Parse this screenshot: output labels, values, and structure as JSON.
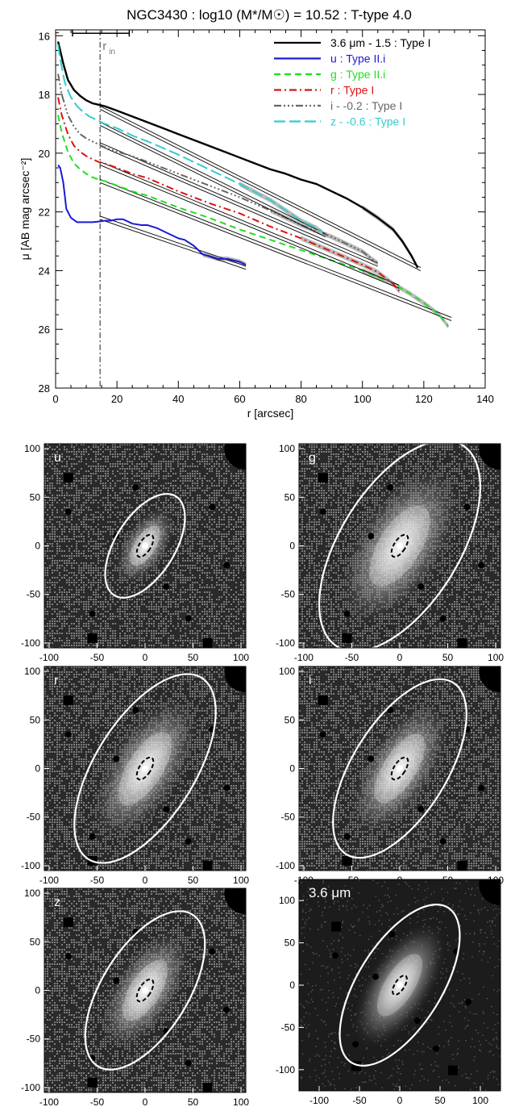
{
  "chart_data": [
    {
      "type": "line",
      "title": "NGC3430 : log10 (M*/M☉) = 10.52 : T-type 4.0",
      "xlabel": "r [arcsec]",
      "ylabel": "μ [AB mag arcsec⁻²]",
      "xlim": [
        0,
        140
      ],
      "ylim": [
        28,
        15.8
      ],
      "y_inverted": true,
      "xticks": [
        "0",
        "20",
        "40",
        "60",
        "80",
        "100",
        "120",
        "140"
      ],
      "yticks": [
        "16",
        "18",
        "20",
        "22",
        "24",
        "26",
        "28"
      ],
      "legend_position": "top-right",
      "annotations": {
        "r_in_label": "r",
        "r_in_sub": "in",
        "r_in_value": 14.5,
        "r_in_errorbar": [
          5.5,
          24.0
        ],
        "r_in_errorbar_y": 16.0
      },
      "series": [
        {
          "name": "3.6 μm - 1.5 : Type I",
          "color": "#000000",
          "dash": "solid",
          "x": [
            0.8,
            1.5,
            2.5,
            4,
            6,
            8,
            10,
            12,
            14,
            16,
            20,
            25,
            30,
            35,
            40,
            45,
            50,
            55,
            60,
            65,
            70,
            75,
            80,
            85,
            90,
            95,
            100,
            105,
            110,
            113,
            116,
            118
          ],
          "y": [
            16.2,
            16.5,
            16.95,
            17.5,
            17.85,
            18.05,
            18.2,
            18.3,
            18.35,
            18.4,
            18.55,
            18.75,
            18.95,
            19.15,
            19.35,
            19.55,
            19.75,
            19.95,
            20.15,
            20.35,
            20.55,
            20.7,
            20.9,
            21.05,
            21.3,
            21.55,
            21.85,
            22.2,
            22.6,
            23.0,
            23.5,
            23.9
          ],
          "fit_start": 14.5,
          "fit_end": 119,
          "fit_y0": 18.45,
          "fit_y1": 23.95
        },
        {
          "name": "u : Type II.i",
          "color": "#1a1ad6",
          "dash": "solid",
          "x": [
            0.8,
            1.5,
            2.5,
            3.5,
            5,
            7,
            9,
            12,
            14,
            16,
            18,
            20,
            22,
            25,
            28,
            30,
            33,
            36,
            40,
            42,
            45,
            48,
            50,
            53,
            56,
            60,
            62
          ],
          "y": [
            20.4,
            20.5,
            21.0,
            21.9,
            22.2,
            22.35,
            22.35,
            22.35,
            22.33,
            22.3,
            22.3,
            22.25,
            22.25,
            22.4,
            22.45,
            22.45,
            22.55,
            22.7,
            22.9,
            22.95,
            23.15,
            23.45,
            23.5,
            23.6,
            23.6,
            23.7,
            23.8
          ],
          "fit_start": 14.5,
          "fit_end": 62,
          "fit_y0": 22.2,
          "fit_y1": 23.9
        },
        {
          "name": "g : Type II.i",
          "color": "#22dd22",
          "dash": "8,5",
          "x": [
            0.8,
            2,
            4,
            6,
            8,
            10,
            12,
            14,
            16,
            20,
            25,
            30,
            40,
            50,
            60,
            70,
            80,
            90,
            100,
            110,
            115,
            120,
            125,
            128
          ],
          "y": [
            18.7,
            19.3,
            19.95,
            20.35,
            20.55,
            20.7,
            20.82,
            20.9,
            20.95,
            21.1,
            21.3,
            21.45,
            21.85,
            22.2,
            22.6,
            22.95,
            23.3,
            23.65,
            24.0,
            24.45,
            24.75,
            25.1,
            25.5,
            25.9
          ],
          "fit_start": 14.5,
          "fit_end": 129,
          "fit_y0": 20.95,
          "fit_y1": 25.65
        },
        {
          "name": "r : Type I",
          "color": "#dd1111",
          "dash": "9,4,2,4",
          "x": [
            0.8,
            2,
            4,
            6,
            8,
            10,
            12,
            14,
            16,
            20,
            25,
            30,
            40,
            50,
            60,
            70,
            80,
            90,
            100,
            105,
            110,
            112
          ],
          "y": [
            18.1,
            18.7,
            19.35,
            19.75,
            19.95,
            20.1,
            20.2,
            20.3,
            20.35,
            20.5,
            20.7,
            20.85,
            21.3,
            21.7,
            22.05,
            22.5,
            22.9,
            23.35,
            23.8,
            24.05,
            24.45,
            24.7
          ],
          "fit_start": 14.5,
          "fit_end": 112,
          "fit_y0": 20.35,
          "fit_y1": 24.55
        },
        {
          "name": "i - -0.2 : Type I",
          "color": "#666666",
          "dash": "9,3,2,3,2,3,2,3",
          "x": [
            0.8,
            2,
            4,
            6,
            8,
            10,
            12,
            14,
            16,
            20,
            25,
            30,
            40,
            50,
            60,
            70,
            80,
            90,
            100,
            103,
            105
          ],
          "y": [
            17.3,
            18.0,
            18.7,
            19.1,
            19.35,
            19.5,
            19.6,
            19.7,
            19.8,
            19.95,
            20.1,
            20.3,
            20.7,
            21.1,
            21.5,
            21.95,
            22.45,
            22.85,
            23.35,
            23.6,
            23.75
          ],
          "fit_start": 14.5,
          "fit_end": 105,
          "fit_y0": 19.7,
          "fit_y1": 23.8
        },
        {
          "name": "z - -0.6 : Type I",
          "color": "#33cccc",
          "dash": "14,5",
          "x": [
            0.8,
            1.5,
            3,
            5,
            7,
            9,
            11,
            13,
            14,
            16,
            20,
            25,
            30,
            40,
            50,
            60,
            70,
            75,
            80,
            85,
            87
          ],
          "y": [
            16.3,
            16.8,
            17.6,
            18.1,
            18.4,
            18.6,
            18.75,
            18.85,
            18.9,
            19.0,
            19.15,
            19.4,
            19.6,
            20.05,
            20.55,
            21.05,
            21.6,
            21.95,
            22.3,
            22.55,
            22.7
          ],
          "fit_start": 14.5,
          "fit_end": 88,
          "fit_y0": 19.0,
          "fit_y1": 22.8
        }
      ]
    },
    {
      "type": "image",
      "panels": [
        {
          "label": "u",
          "band": "u",
          "outer_axes": [
            31,
            60
          ],
          "angle_deg": 32,
          "inner_axes": [
            6,
            13
          ],
          "xticks": [
            "-100",
            "-50",
            "0",
            "50",
            "100"
          ],
          "yticks": [
            "100",
            "50",
            "0",
            "-50",
            "-100"
          ],
          "xlim": [
            -105,
            105
          ],
          "ylim": [
            -105,
            105
          ],
          "noise": 0.55
        },
        {
          "label": "g",
          "band": "g",
          "outer_axes": [
            62,
            122
          ],
          "angle_deg": 32,
          "inner_axes": [
            6,
            13
          ],
          "xticks": [
            "-100",
            "-50",
            "0",
            "50",
            "100"
          ],
          "yticks": [
            "100",
            "50",
            "0",
            "-50",
            "-100"
          ],
          "xlim": [
            -105,
            105
          ],
          "ylim": [
            -105,
            105
          ],
          "noise": 0.6
        },
        {
          "label": "r",
          "band": "r",
          "outer_axes": [
            52,
            110
          ],
          "angle_deg": 32,
          "inner_axes": [
            6,
            13
          ],
          "xticks": [
            "-100",
            "-50",
            "0",
            "50",
            "100"
          ],
          "yticks": [
            "100",
            "50",
            "0",
            "-50",
            "-100"
          ],
          "xlim": [
            -105,
            105
          ],
          "ylim": [
            -105,
            105
          ],
          "noise": 0.6
        },
        {
          "label": "i",
          "band": "i",
          "outer_axes": [
            49,
            104
          ],
          "angle_deg": 32,
          "inner_axes": [
            6,
            13
          ],
          "xticks": [
            "-100",
            "-50",
            "0",
            "50",
            "100"
          ],
          "yticks": [
            "100",
            "50",
            "0",
            "-50",
            "-100"
          ],
          "xlim": [
            -105,
            105
          ],
          "ylim": [
            -105,
            105
          ],
          "noise": 0.6
        },
        {
          "label": "z",
          "band": "z",
          "outer_axes": [
            45,
            92
          ],
          "angle_deg": 32,
          "inner_axes": [
            6,
            13
          ],
          "xticks": [
            "-100",
            "-50",
            "0",
            "50",
            "100"
          ],
          "yticks": [
            "100",
            "50",
            "0",
            "-50",
            "-100"
          ],
          "xlim": [
            -105,
            105
          ],
          "ylim": [
            -105,
            105
          ],
          "noise": 0.55
        },
        {
          "label": "3.6 μm",
          "band": "3.6um",
          "outer_axes": [
            52,
            108
          ],
          "angle_deg": 32,
          "inner_axes": [
            6,
            13
          ],
          "xticks": [
            "-100",
            "-50",
            "0",
            "50",
            "100"
          ],
          "yticks": [
            "100",
            "50",
            "0",
            "-50",
            "-100"
          ],
          "xlim": [
            -125,
            125
          ],
          "ylim": [
            -125,
            125
          ],
          "noise": 0.0
        }
      ]
    }
  ]
}
